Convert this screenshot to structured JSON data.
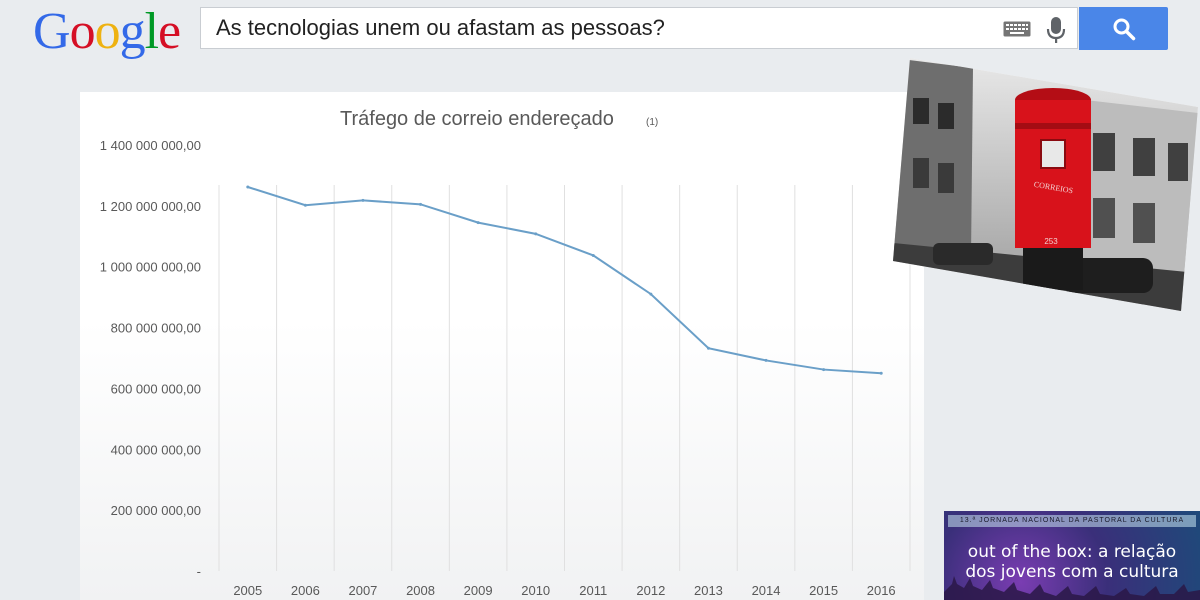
{
  "logo": {
    "letters": [
      "G",
      "o",
      "o",
      "g",
      "l",
      "e"
    ],
    "colors": [
      "#3369e8",
      "#d50f25",
      "#eeb211",
      "#3369e8",
      "#009925",
      "#d50f25"
    ]
  },
  "search": {
    "query": "As tecnologias unem ou afastam as pessoas?",
    "keyboard_icon": "keyboard-icon",
    "mic_icon": "microphone-icon",
    "button_icon": "search-icon",
    "button_color": "#4a86e8"
  },
  "chart_data": {
    "type": "line",
    "title": "Tráfego de correio endereçado",
    "title_note": "(1)",
    "x": [
      "2005",
      "2006",
      "2007",
      "2008",
      "2009",
      "2010",
      "2011",
      "2012",
      "2013",
      "2014",
      "2015",
      "2016"
    ],
    "series": [
      {
        "values": [
          1262000000,
          1202000000,
          1218000000,
          1205000000,
          1145000000,
          1108000000,
          1037000000,
          910000000,
          732000000,
          692000000,
          662000000,
          650000000
        ]
      }
    ],
    "ylim": [
      0,
      1400000000
    ],
    "yticks": [
      "-",
      "200 000 000,00",
      "400 000 000,00",
      "600 000 000,00",
      "800 000 000,00",
      "1 000 000 000,00",
      "1 200 000 000,00",
      "1 400 000 000,00"
    ],
    "grid": "vertical",
    "line_color": "#6a9fc8"
  },
  "photo": {
    "box_text": "CORREIOS",
    "box_number": "253",
    "accent": "#d8121b"
  },
  "banner": {
    "top_text": "13.ª JORNADA NACIONAL DA PASTORAL DA CULTURA",
    "title_line1": "out of the box: a relação",
    "title_line2": "dos jovens com a cultura"
  }
}
